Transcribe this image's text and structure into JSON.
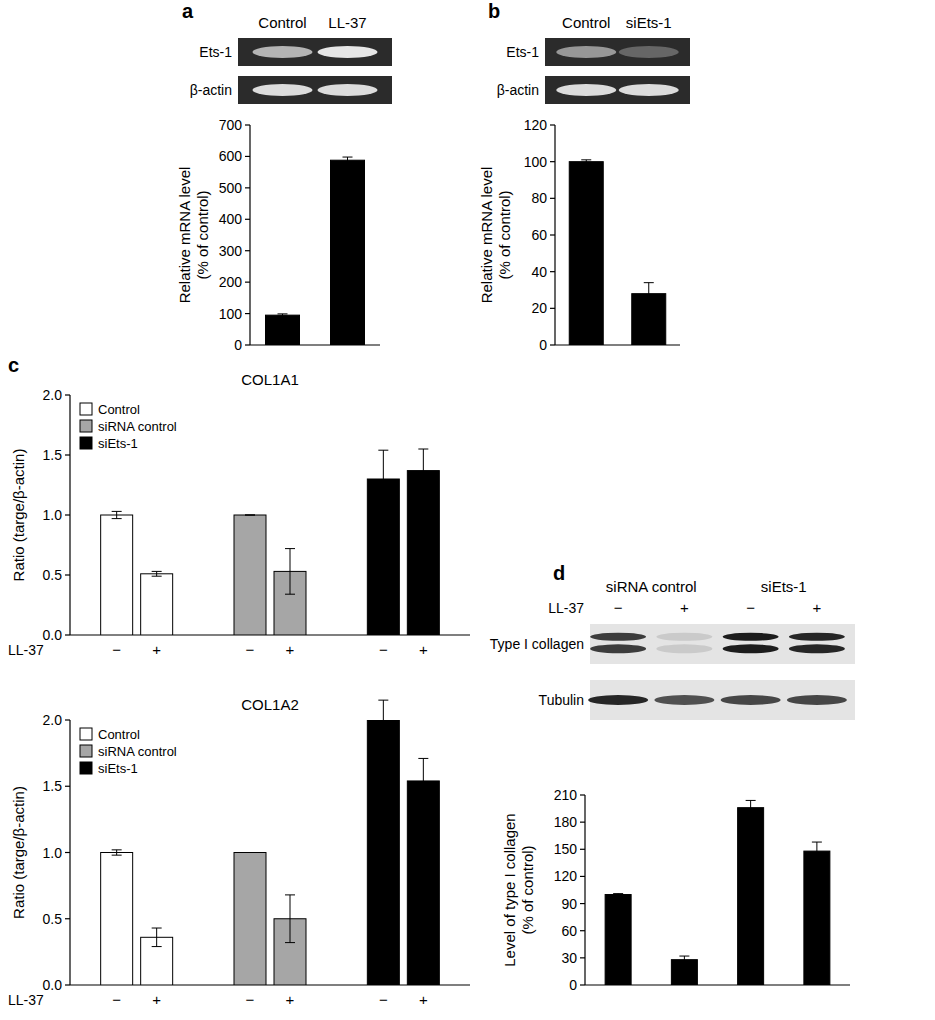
{
  "chart_data": [
    {
      "type": "bar",
      "panel": "a",
      "categories": [
        "Control",
        "LL-37"
      ],
      "gel_rows": [
        "Ets-1",
        "β-actin"
      ],
      "y_label": "Relative mRNA level (% of control)",
      "values": [
        95,
        588
      ],
      "errors": [
        4,
        10
      ],
      "color": "#000000",
      "ylim": [
        0,
        700
      ],
      "yticks": [
        0,
        100,
        200,
        300,
        400,
        500,
        600,
        700
      ]
    },
    {
      "type": "bar",
      "panel": "b",
      "categories": [
        "Control",
        "siEts-1"
      ],
      "gel_rows": [
        "Ets-1",
        "β-actin"
      ],
      "y_label": "Relative mRNA level (% of control)",
      "values": [
        100,
        28
      ],
      "errors": [
        1,
        6
      ],
      "color": "#000000",
      "ylim": [
        0,
        120
      ],
      "yticks": [
        0,
        20,
        40,
        60,
        80,
        100,
        120
      ]
    },
    {
      "type": "bar",
      "panel": "c",
      "title": "COL1A1",
      "x_label": "LL-37",
      "categories": [
        "−",
        "+"
      ],
      "y_label": "Ratio (targe/β-actin)",
      "legend": "upper left",
      "series": [
        {
          "name": "Control",
          "color": "#ffffff",
          "values": [
            1.0,
            0.51
          ],
          "errors": [
            0.03,
            0.02
          ]
        },
        {
          "name": "siRNA control",
          "color": "#a6a6a6",
          "values": [
            1.0,
            0.53
          ],
          "errors": [
            0,
            0.19
          ]
        },
        {
          "name": "siEts-1",
          "color": "#000000",
          "values": [
            1.3,
            1.37
          ],
          "errors": [
            0.24,
            0.18
          ]
        }
      ],
      "ylim": [
        0,
        2
      ],
      "yticks": [
        {
          "value": 0,
          "label": "0.0"
        },
        0.5,
        {
          "value": 1,
          "label": "1.0"
        },
        1.5,
        {
          "value": 2,
          "label": "2.0"
        }
      ]
    },
    {
      "type": "bar",
      "title": "COL1A2",
      "x_label": "LL-37",
      "categories": [
        "−",
        "+"
      ],
      "y_label": "Ratio (targe/β-actin)",
      "legend": "upper left",
      "series": [
        {
          "name": "Control",
          "color": "#ffffff",
          "values": [
            1.0,
            0.36
          ],
          "errors": [
            0.02,
            0.07
          ]
        },
        {
          "name": "siRNA control",
          "color": "#a6a6a6",
          "values": [
            1.0,
            0.5
          ],
          "errors": [
            0,
            0.18
          ]
        },
        {
          "name": "siEts-1",
          "color": "#000000",
          "values": [
            2.0,
            1.54
          ],
          "errors": [
            0.15,
            0.17
          ]
        }
      ],
      "ylim": [
        0,
        2
      ],
      "yticks": [
        {
          "value": 0,
          "label": "0.0"
        },
        0.5,
        {
          "value": 1,
          "label": "1.0"
        },
        1.5,
        {
          "value": 2,
          "label": "2.0"
        }
      ]
    },
    {
      "type": "bar",
      "panel": "d",
      "gel_groups": [
        "siRNA control",
        "siEts-1"
      ],
      "gel_treatment": "LL-37",
      "categories": [
        "−",
        "+",
        "−",
        "+"
      ],
      "gel_rows": [
        "Type I collagen",
        "Tubulin"
      ],
      "y_label": "Level of type I collagen (% of control)",
      "values": [
        100,
        28,
        196,
        148
      ],
      "errors": [
        1,
        4,
        8,
        10
      ],
      "color": "#000000",
      "ylim": [
        0,
        210
      ],
      "yticks": [
        0,
        30,
        60,
        90,
        120,
        150,
        180,
        210
      ]
    }
  ]
}
